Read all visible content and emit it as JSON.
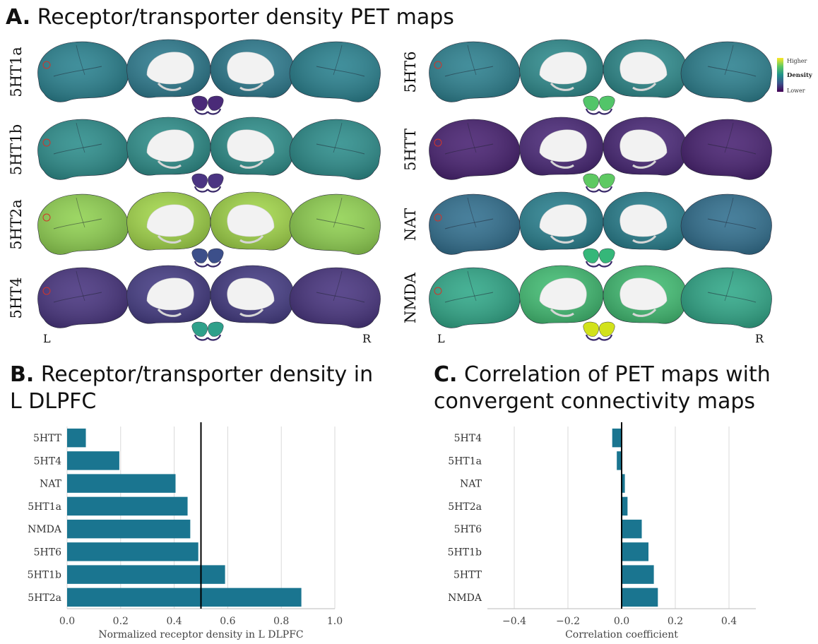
{
  "panel_a": {
    "letter": "A.",
    "title": "Receptor/transporter density PET maps",
    "left_side_label": "L",
    "right_side_label": "R",
    "legend": {
      "higher": "Higher",
      "title": "Density",
      "lower": "Lower"
    },
    "left_rows": [
      {
        "label": "5HT1a",
        "lat": "#27808e",
        "med": "#2b7a8e",
        "sub": "#4a2a78"
      },
      {
        "label": "5HT1b",
        "lat": "#2a8c8a",
        "med": "#2c8e8a",
        "sub": "#4b3482"
      },
      {
        "label": "5HT2a",
        "lat": "#8fd14f",
        "med": "#a2d748",
        "sub": "#3c4f8a"
      },
      {
        "label": "5HT4",
        "lat": "#46327e",
        "med": "#433a83",
        "sub": "#2fa08a"
      }
    ],
    "right_rows": [
      {
        "label": "5HT6",
        "lat": "#2a7f8e",
        "med": "#2c8a8c",
        "sub": "#52c569"
      },
      {
        "label": "5HTT",
        "lat": "#461f70",
        "med": "#482677",
        "sub": "#5ec962"
      },
      {
        "label": "NAT",
        "lat": "#2f6e8e",
        "med": "#277f8e",
        "sub": "#35b779"
      },
      {
        "label": "NMDA",
        "lat": "#2ea787",
        "med": "#40bd72",
        "sub": "#d2e21b"
      }
    ],
    "colors": {
      "viridis_low": "#440154",
      "viridis_mid": "#21918c",
      "viridis_high": "#fde725",
      "roi_outline": "#d0352b"
    }
  },
  "panel_b": {
    "letter": "B.",
    "title_line1": "Receptor/transporter density in",
    "title_line2": "L DLPFC"
  },
  "panel_c": {
    "letter": "C.",
    "title_line1": "Correlation of PET maps with",
    "title_line2": "convergent connectivity maps"
  },
  "chart_data": [
    {
      "type": "bar",
      "orientation": "horizontal",
      "categories": [
        "5HTT",
        "5HT4",
        "NAT",
        "5HT1a",
        "NMDA",
        "5HT6",
        "5HT1b",
        "5HT2a"
      ],
      "values": [
        0.07,
        0.195,
        0.405,
        0.45,
        0.46,
        0.49,
        0.59,
        0.875
      ],
      "xlabel": "Normalized receptor density in L DLPFC",
      "ylabel": "",
      "xlim": [
        0.0,
        1.0
      ],
      "xticks": [
        "0.0",
        "0.2",
        "0.4",
        "0.6",
        "0.8",
        "1.0"
      ],
      "xtick_values": [
        0.0,
        0.2,
        0.4,
        0.6,
        0.8,
        1.0
      ],
      "reference_line": 0.5,
      "bar_color": "#1a7590",
      "grid": "vertical"
    },
    {
      "type": "bar",
      "orientation": "horizontal",
      "categories": [
        "5HT4",
        "5HT1a",
        "NAT",
        "5HT2a",
        "5HT6",
        "5HT1b",
        "5HTT",
        "NMDA"
      ],
      "values": [
        -0.035,
        -0.018,
        0.012,
        0.022,
        0.075,
        0.1,
        0.12,
        0.135
      ],
      "xlabel": "Correlation coefficient",
      "ylabel": "",
      "xlim": [
        -0.5,
        0.5
      ],
      "xticks": [
        "−0.4",
        "−0.2",
        "0.0",
        "0.2",
        "0.4"
      ],
      "xtick_values": [
        -0.4,
        -0.2,
        0.0,
        0.2,
        0.4
      ],
      "reference_line": 0.0,
      "bar_color": "#1a7590",
      "grid": "vertical"
    }
  ]
}
